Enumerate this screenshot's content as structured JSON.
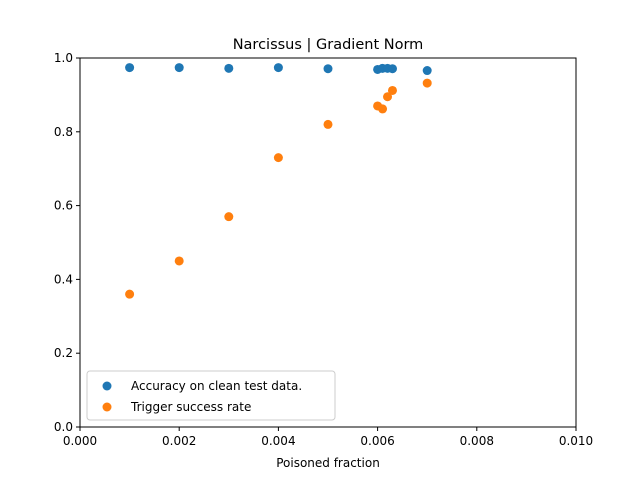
{
  "chart_data": {
    "type": "scatter",
    "title": "Narcissus | Gradient Norm",
    "xlabel": "Poisoned fraction",
    "ylabel": "",
    "xlim": [
      0.0,
      0.01
    ],
    "ylim": [
      0.0,
      1.0
    ],
    "xticks": [
      0.0,
      0.002,
      0.004,
      0.006,
      0.008,
      0.01
    ],
    "xtick_labels": [
      "0.000",
      "0.002",
      "0.004",
      "0.006",
      "0.008",
      "0.010"
    ],
    "yticks": [
      0.0,
      0.2,
      0.4,
      0.6,
      0.8,
      1.0
    ],
    "ytick_labels": [
      "0.0",
      "0.2",
      "0.4",
      "0.6",
      "0.8",
      "1.0"
    ],
    "grid": false,
    "legend_position": "lower-left",
    "series": [
      {
        "name": "Accuracy on clean test data.",
        "color": "#1f77b4",
        "points": [
          {
            "x": 0.001,
            "y": 0.974
          },
          {
            "x": 0.002,
            "y": 0.974
          },
          {
            "x": 0.003,
            "y": 0.972
          },
          {
            "x": 0.004,
            "y": 0.974
          },
          {
            "x": 0.005,
            "y": 0.971
          },
          {
            "x": 0.006,
            "y": 0.969
          },
          {
            "x": 0.0061,
            "y": 0.972
          },
          {
            "x": 0.0062,
            "y": 0.972
          },
          {
            "x": 0.0063,
            "y": 0.971
          },
          {
            "x": 0.007,
            "y": 0.966
          }
        ]
      },
      {
        "name": "Trigger success rate",
        "color": "#ff7f0e",
        "points": [
          {
            "x": 0.001,
            "y": 0.36
          },
          {
            "x": 0.002,
            "y": 0.45
          },
          {
            "x": 0.003,
            "y": 0.57
          },
          {
            "x": 0.004,
            "y": 0.73
          },
          {
            "x": 0.005,
            "y": 0.82
          },
          {
            "x": 0.006,
            "y": 0.87
          },
          {
            "x": 0.0061,
            "y": 0.862
          },
          {
            "x": 0.0062,
            "y": 0.895
          },
          {
            "x": 0.0063,
            "y": 0.912
          },
          {
            "x": 0.007,
            "y": 0.932
          }
        ]
      }
    ]
  }
}
